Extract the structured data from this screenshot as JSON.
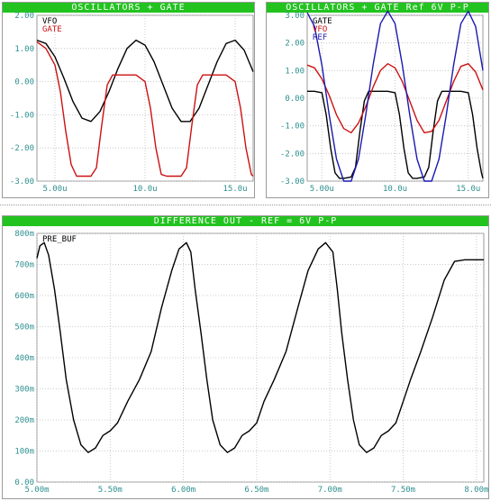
{
  "chart_data": [
    {
      "type": "line",
      "title": "OSCILLATORS + GATE",
      "x_ticks": [
        "5.00u",
        "10.0u",
        "15.0u"
      ],
      "x_tick_values": [
        5,
        10,
        15
      ],
      "xlim": [
        4.0,
        16.0
      ],
      "y_ticks": [
        "2.00",
        "1.00",
        "0.00",
        "-1.00",
        "-2.00",
        "-3.00"
      ],
      "y_tick_values": [
        2,
        1,
        0,
        -1,
        -2,
        -3
      ],
      "ylim": [
        -3.0,
        2.0
      ],
      "grid": true,
      "legend": "top-left",
      "series": [
        {
          "name": "VFO",
          "color": "#000000",
          "x": [
            4.0,
            4.5,
            5.0,
            5.5,
            6.0,
            6.5,
            7.0,
            7.5,
            8.0,
            8.5,
            9.0,
            9.5,
            10.0,
            10.5,
            11.0,
            11.5,
            12.0,
            12.5,
            13.0,
            13.5,
            14.0,
            14.5,
            15.0,
            15.5,
            16.0
          ],
          "values": [
            1.25,
            1.15,
            0.75,
            0.1,
            -0.6,
            -1.1,
            -1.2,
            -0.9,
            -0.3,
            0.4,
            1.0,
            1.25,
            1.1,
            0.6,
            -0.1,
            -0.8,
            -1.2,
            -1.2,
            -0.8,
            -0.1,
            0.6,
            1.15,
            1.25,
            0.95,
            0.3
          ]
        },
        {
          "name": "GATE",
          "color": "#cc1111",
          "x": [
            4.0,
            4.5,
            5.0,
            5.3,
            5.6,
            5.9,
            6.2,
            6.5,
            7.0,
            7.3,
            7.6,
            7.9,
            8.2,
            8.5,
            9.0,
            9.5,
            10.0,
            10.3,
            10.6,
            10.9,
            11.2,
            11.5,
            12.0,
            12.3,
            12.6,
            12.9,
            13.2,
            13.5,
            14.0,
            14.5,
            15.0,
            15.3,
            15.6,
            15.9,
            16.0
          ],
          "values": [
            1.2,
            1.0,
            0.5,
            -0.3,
            -1.5,
            -2.5,
            -2.85,
            -2.85,
            -2.85,
            -2.6,
            -1.3,
            -0.1,
            0.2,
            0.2,
            0.2,
            0.2,
            0.0,
            -0.8,
            -2.0,
            -2.8,
            -2.85,
            -2.85,
            -2.85,
            -2.6,
            -1.3,
            -0.1,
            0.2,
            0.2,
            0.2,
            0.2,
            0.0,
            -0.8,
            -2.0,
            -2.8,
            -2.85
          ]
        }
      ]
    },
    {
      "type": "line",
      "title": "OSCILLATORS + GATE Ref 6V P-P",
      "x_ticks": [
        "5.00u",
        "10.0u",
        "15.0u"
      ],
      "x_tick_values": [
        5,
        10,
        15
      ],
      "xlim": [
        4.0,
        16.0
      ],
      "y_ticks": [
        "3.00",
        "2.00",
        "1.00",
        "0.00",
        "-1.00",
        "-2.00",
        "-3.00"
      ],
      "y_tick_values": [
        3,
        2,
        1,
        0,
        -1,
        -2,
        -3
      ],
      "ylim": [
        -3.0,
        3.0
      ],
      "grid": true,
      "legend": "top-left",
      "series": [
        {
          "name": "GATE",
          "color": "#000000",
          "x": [
            4.0,
            4.5,
            5.0,
            5.3,
            5.6,
            5.9,
            6.2,
            6.5,
            7.0,
            7.3,
            7.6,
            7.9,
            8.2,
            8.5,
            9.0,
            9.5,
            10.0,
            10.3,
            10.6,
            10.9,
            11.2,
            11.5,
            12.0,
            12.3,
            12.6,
            12.9,
            13.2,
            13.5,
            14.0,
            14.5,
            15.0,
            15.3,
            15.6,
            15.9,
            16.0
          ],
          "values": [
            0.25,
            0.25,
            0.2,
            -0.6,
            -1.8,
            -2.7,
            -2.9,
            -2.9,
            -2.85,
            -2.5,
            -1.2,
            -0.1,
            0.25,
            0.25,
            0.25,
            0.25,
            0.2,
            -0.6,
            -1.8,
            -2.7,
            -2.9,
            -2.9,
            -2.85,
            -2.5,
            -1.2,
            -0.1,
            0.25,
            0.25,
            0.25,
            0.25,
            0.2,
            -0.6,
            -1.8,
            -2.7,
            -2.9
          ]
        },
        {
          "name": "VFO",
          "color": "#cc1111",
          "x": [
            4.0,
            4.5,
            5.0,
            5.5,
            6.0,
            6.5,
            7.0,
            7.5,
            8.0,
            8.5,
            9.0,
            9.5,
            10.0,
            10.5,
            11.0,
            11.5,
            12.0,
            12.5,
            13.0,
            13.5,
            14.0,
            14.5,
            15.0,
            15.5,
            16.0
          ],
          "values": [
            1.2,
            1.1,
            0.7,
            0.1,
            -0.6,
            -1.1,
            -1.25,
            -0.9,
            -0.3,
            0.4,
            1.0,
            1.25,
            1.1,
            0.6,
            -0.1,
            -0.8,
            -1.25,
            -1.2,
            -0.8,
            -0.1,
            0.6,
            1.15,
            1.25,
            0.95,
            0.3
          ]
        },
        {
          "name": "REF",
          "color": "#1a1ab0",
          "x": [
            4.0,
            4.5,
            5.0,
            5.5,
            6.0,
            6.5,
            7.0,
            7.5,
            8.0,
            8.5,
            9.0,
            9.5,
            10.0,
            10.5,
            11.0,
            11.5,
            12.0,
            12.5,
            13.0,
            13.5,
            14.0,
            14.5,
            15.0,
            15.5,
            16.0
          ],
          "values": [
            3.1,
            2.6,
            1.2,
            -0.6,
            -2.2,
            -3.0,
            -3.0,
            -2.2,
            -0.6,
            1.2,
            2.7,
            3.15,
            2.7,
            1.2,
            -0.6,
            -2.2,
            -3.0,
            -3.0,
            -2.2,
            -0.6,
            1.2,
            2.7,
            3.15,
            2.6,
            1.0
          ]
        }
      ]
    },
    {
      "type": "line",
      "title": "DIFFERENCE OUT - REF = 6V P-P",
      "x_ticks": [
        "5.00m",
        "5.50m",
        "6.00m",
        "6.50m",
        "7.00m",
        "7.50m",
        "8.00m"
      ],
      "x_tick_values": [
        5.0,
        5.5,
        6.0,
        6.5,
        7.0,
        7.5,
        8.0
      ],
      "xlim": [
        5.0,
        8.05
      ],
      "y_ticks": [
        "800m",
        "700m",
        "600m",
        "500m",
        "400m",
        "300m",
        "200m",
        "100m",
        "0.00"
      ],
      "y_tick_values": [
        800,
        700,
        600,
        500,
        400,
        300,
        200,
        100,
        0
      ],
      "ylim": [
        0,
        800
      ],
      "grid": true,
      "legend": "top-left",
      "series": [
        {
          "name": "PRE_BUF",
          "color": "#000000",
          "x": [
            5.0,
            5.02,
            5.05,
            5.08,
            5.12,
            5.16,
            5.2,
            5.25,
            5.3,
            5.35,
            5.4,
            5.45,
            5.5,
            5.55,
            5.62,
            5.7,
            5.78,
            5.85,
            5.92,
            5.97,
            6.02,
            6.05,
            6.08,
            6.12,
            6.16,
            6.2,
            6.25,
            6.3,
            6.35,
            6.4,
            6.45,
            6.5,
            6.55,
            6.62,
            6.7,
            6.78,
            6.85,
            6.92,
            6.97,
            7.02,
            7.05,
            7.08,
            7.12,
            7.16,
            7.2,
            7.25,
            7.3,
            7.35,
            7.4,
            7.45,
            7.5,
            7.55,
            7.62,
            7.7,
            7.78,
            7.85,
            7.92,
            7.97,
            8.02,
            8.05
          ],
          "values": [
            720,
            760,
            770,
            730,
            620,
            480,
            330,
            200,
            120,
            95,
            110,
            150,
            165,
            190,
            260,
            330,
            420,
            560,
            680,
            750,
            770,
            740,
            620,
            480,
            330,
            200,
            120,
            95,
            110,
            150,
            165,
            190,
            260,
            330,
            420,
            560,
            680,
            750,
            770,
            740,
            620,
            480,
            330,
            200,
            120,
            95,
            110,
            150,
            165,
            190,
            260,
            330,
            420,
            530,
            650,
            710,
            715,
            715,
            715,
            715
          ]
        }
      ]
    }
  ]
}
